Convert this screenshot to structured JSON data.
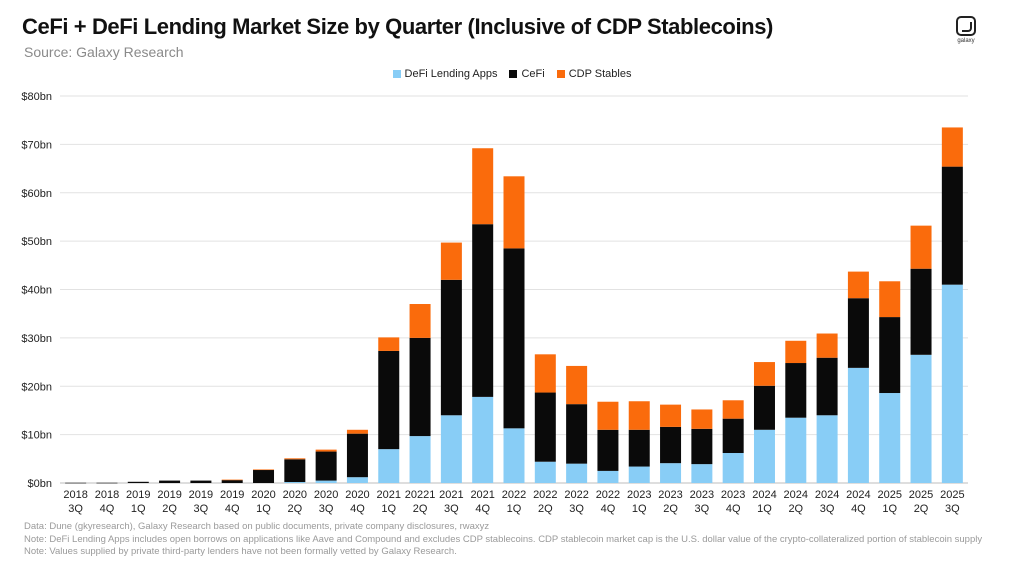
{
  "title": "CeFi + DeFi Lending Market Size by Quarter (Inclusive of CDP Stablecoins)",
  "source": "Source: Galaxy Research",
  "logo_text": "galaxy",
  "notes": [
    "Data: Dune (gkyresearch), Galaxy Research based on public documents, private company disclosures, rwaxyz",
    "Note: DeFi Lending Apps includes open borrows on applications like Aave and Compound and excludes CDP stablecoins. CDP stablecoin market cap is the U.S. dollar value of the crypto-collateralized portion of stablecoin supply",
    "Note: Values supplied by private third-party lenders have not been formally vetted by Galaxy Research."
  ],
  "colors": {
    "defi": "#88cdf6",
    "cefi": "#0a0a0a",
    "cdp": "#fa6b0c",
    "grid": "#e2e2e2",
    "axis": "#bdbdbd"
  },
  "chart_data": {
    "type": "bar",
    "stacked": true,
    "title": "CeFi + DeFi Lending Market Size by Quarter (Inclusive of CDP Stablecoins)",
    "xlabel": "",
    "ylabel": "",
    "ylim": [
      0,
      80
    ],
    "yticks": [
      "$0bn",
      "$10bn",
      "$20bn",
      "$30bn",
      "$40bn",
      "$50bn",
      "$60bn",
      "$70bn",
      "$80bn"
    ],
    "legend_position": "top-center",
    "grid": true,
    "categories": [
      [
        "2018",
        "3Q"
      ],
      [
        "2018",
        "4Q"
      ],
      [
        "2019",
        "1Q"
      ],
      [
        "2019",
        "2Q"
      ],
      [
        "2019",
        "3Q"
      ],
      [
        "2019",
        "4Q"
      ],
      [
        "2020",
        "1Q"
      ],
      [
        "2020",
        "2Q"
      ],
      [
        "2020",
        "3Q"
      ],
      [
        "2020",
        "4Q"
      ],
      [
        "2021",
        "1Q"
      ],
      [
        "20221",
        "2Q"
      ],
      [
        "2021",
        "3Q"
      ],
      [
        "2021",
        "4Q"
      ],
      [
        "2022",
        "1Q"
      ],
      [
        "2022",
        "2Q"
      ],
      [
        "2022",
        "3Q"
      ],
      [
        "2022",
        "4Q"
      ],
      [
        "2023",
        "1Q"
      ],
      [
        "2023",
        "2Q"
      ],
      [
        "2023",
        "3Q"
      ],
      [
        "2023",
        "4Q"
      ],
      [
        "2024",
        "1Q"
      ],
      [
        "2024",
        "2Q"
      ],
      [
        "2024",
        "3Q"
      ],
      [
        "2024",
        "4Q"
      ],
      [
        "2025",
        "1Q"
      ],
      [
        "2025",
        "2Q"
      ],
      [
        "2025",
        "3Q"
      ]
    ],
    "series": [
      {
        "name": "DeFi Lending Apps",
        "color": "#88cdf6",
        "values": [
          0,
          0,
          0,
          0,
          0,
          0,
          0,
          0.2,
          0.5,
          1.2,
          7.0,
          9.7,
          14.0,
          17.8,
          11.3,
          4.4,
          4.0,
          2.5,
          3.4,
          4.1,
          3.9,
          6.2,
          11.0,
          13.5,
          14.0,
          23.8,
          18.6,
          26.5,
          41.0
        ]
      },
      {
        "name": "CeFi",
        "color": "#0a0a0a",
        "values": [
          0.05,
          0.05,
          0.25,
          0.5,
          0.5,
          0.6,
          2.7,
          4.7,
          6.0,
          9.0,
          20.3,
          20.3,
          28.0,
          35.7,
          37.2,
          14.3,
          12.3,
          8.5,
          7.6,
          7.5,
          7.3,
          7.1,
          9.1,
          11.3,
          11.9,
          14.4,
          15.7,
          17.8,
          24.4
        ]
      },
      {
        "name": "CDP Stables",
        "color": "#fa6b0c",
        "values": [
          0,
          0,
          0,
          0,
          0,
          0.1,
          0.1,
          0.2,
          0.4,
          0.8,
          2.8,
          7.0,
          7.7,
          15.7,
          14.9,
          7.9,
          7.9,
          5.8,
          5.9,
          4.6,
          4.0,
          3.8,
          4.9,
          4.6,
          5.0,
          5.5,
          7.4,
          8.9,
          8.1
        ]
      }
    ]
  }
}
